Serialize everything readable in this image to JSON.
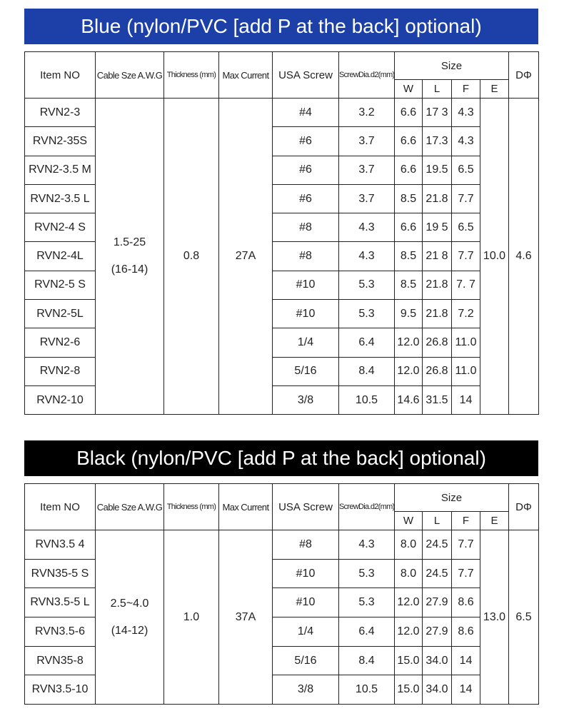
{
  "tables": [
    {
      "banner": "Blue (nylon/PVC [add P at the back] optional)",
      "banner_color": "#1c40a8",
      "headers": {
        "item": "Item NO",
        "cable": "Cable Sze A.W.G",
        "thickness": "Thickness (mm)",
        "current": "Max Current",
        "screw": "USA Screw",
        "dia": "ScrewDia.d2(mm)",
        "size": "Size",
        "w": "W",
        "l": "L",
        "f": "F",
        "e": "E",
        "d": "DΦ"
      },
      "cable_size": "1.5-25",
      "cable_awg": "(16-14)",
      "thickness": "0.8",
      "max_current": "27A",
      "e": "10.0",
      "d": "4.6",
      "rows": [
        {
          "item": "RVN2-3",
          "screw": "#4",
          "dia": "3.2",
          "w": "6.6",
          "l": "17 3",
          "f": "4.3"
        },
        {
          "item": "RVN2-35S",
          "screw": "#6",
          "dia": "3.7",
          "w": "6.6",
          "l": "17.3",
          "f": "4.3"
        },
        {
          "item": "RVN2-3.5 M",
          "screw": "#6",
          "dia": "3.7",
          "w": "6.6",
          "l": "19.5",
          "f": "6.5"
        },
        {
          "item": "RVN2-3.5 L",
          "screw": "#6",
          "dia": "3.7",
          "w": "8.5",
          "l": "21.8",
          "f": "7.7"
        },
        {
          "item": "RVN2-4 S",
          "screw": "#8",
          "dia": "4.3",
          "w": "6.6",
          "l": "19 5",
          "f": "6.5"
        },
        {
          "item": "RVN2-4L",
          "screw": "#8",
          "dia": "4.3",
          "w": "8.5",
          "l": "21 8",
          "f": "7.7"
        },
        {
          "item": "RVN2-5 S",
          "screw": "#10",
          "dia": "5.3",
          "w": "8.5",
          "l": "21.8",
          "f": "7. 7"
        },
        {
          "item": "RVN2-5L",
          "screw": "#10",
          "dia": "5.3",
          "w": "9.5",
          "l": "21.8",
          "f": "7.2"
        },
        {
          "item": "RVN2-6",
          "screw": "1/4",
          "dia": "6.4",
          "w": "12.0",
          "l": "26.8",
          "f": "11.0"
        },
        {
          "item": "RVN2-8",
          "screw": "5/16",
          "dia": "8.4",
          "w": "12.0",
          "l": "26.8",
          "f": "11.0"
        },
        {
          "item": "RVN2-10",
          "screw": "3/8",
          "dia": "10.5",
          "w": "14.6",
          "l": "31.5",
          "f": "14"
        }
      ]
    },
    {
      "banner": "Black (nylon/PVC [add P at the back] optional)",
      "banner_color": "#000000",
      "headers": {
        "item": "Item NO",
        "cable": "Cable Sze A.W.G",
        "thickness": "Thickness (mm)",
        "current": "Max Current",
        "screw": "USA Screw",
        "dia": "ScrewDia.d2(mm)",
        "size": "Size",
        "w": "W",
        "l": "L",
        "f": "F",
        "e": "E",
        "d": "DΦ"
      },
      "cable_size": "2.5~4.0",
      "cable_awg": "(14-12)",
      "thickness": "1.0",
      "max_current": "37A",
      "e": "13.0",
      "d": "6.5",
      "rows": [
        {
          "item": "RVN3.5 4",
          "screw": "#8",
          "dia": "4.3",
          "w": "8.0",
          "l": "24.5",
          "f": "7.7"
        },
        {
          "item": "RVN35-5 S",
          "screw": "#10",
          "dia": "5.3",
          "w": "8.0",
          "l": "24.5",
          "f": "7.7"
        },
        {
          "item": "RVN3.5-5 L",
          "screw": "#10",
          "dia": "5.3",
          "w": "12.0",
          "l": "27.9",
          "f": "8.6"
        },
        {
          "item": "RVN3.5-6",
          "screw": "1/4",
          "dia": "6.4",
          "w": "12.0",
          "l": "27.9",
          "f": "8.6"
        },
        {
          "item": "RVN35-8",
          "screw": "5/16",
          "dia": "8.4",
          "w": "15.0",
          "l": "34.0",
          "f": "14"
        },
        {
          "item": "RVN3.5-10",
          "screw": "3/8",
          "dia": "10.5",
          "w": "15.0",
          "l": "34.0",
          "f": "14"
        }
      ]
    }
  ]
}
